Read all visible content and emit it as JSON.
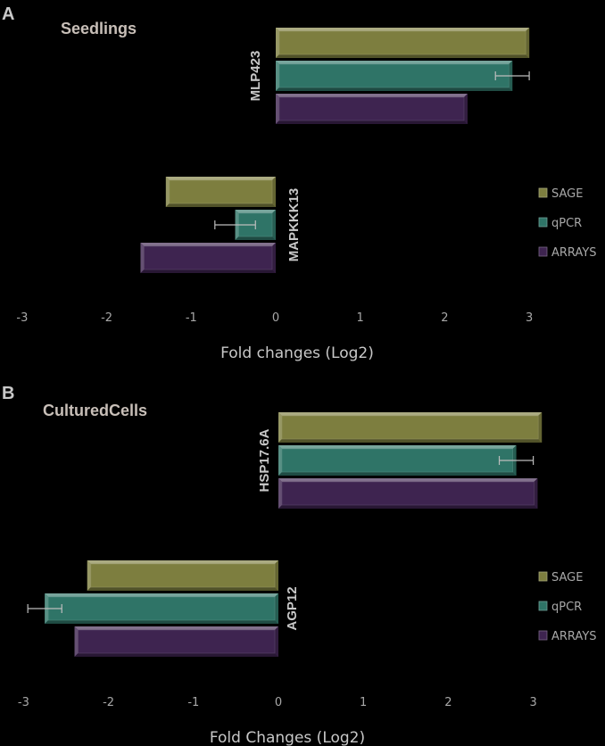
{
  "panels": [
    {
      "letter": "A",
      "title": "Seedlings",
      "xlabel": "Fold changes (Log2)"
    },
    {
      "letter": "B",
      "title": "CulturedCells",
      "xlabel": "Fold Changes (Log2)"
    }
  ],
  "legend": [
    "SAGE",
    "qPCR",
    "ARRAYS"
  ],
  "colors": {
    "SAGE": "#7d7e3f",
    "qPCR": "#2f7467",
    "ARRAYS": "#3e2450"
  },
  "chart_data": [
    {
      "type": "bar",
      "orientation": "horizontal",
      "title": "Seedlings",
      "xlabel": "Fold changes (Log2)",
      "xlim": [
        -3,
        3
      ],
      "xticks": [
        -3,
        -2,
        -1,
        0,
        1,
        2,
        3
      ],
      "categories": [
        "MLP423",
        "MAPKKK13"
      ],
      "series": [
        {
          "name": "SAGE",
          "values": [
            3.0,
            -1.3
          ]
        },
        {
          "name": "qPCR",
          "values": [
            2.8,
            -0.48
          ],
          "error": [
            0.2,
            0.24
          ]
        },
        {
          "name": "ARRAYS",
          "values": [
            2.27,
            -1.6
          ]
        }
      ],
      "legend_position": "right"
    },
    {
      "type": "bar",
      "orientation": "horizontal",
      "title": "CulturedCells",
      "xlabel": "Fold Changes (Log2)",
      "xlim": [
        -3,
        3
      ],
      "xticks": [
        -3,
        -2,
        -1,
        0,
        1,
        2,
        3
      ],
      "categories": [
        "HSP17.6A",
        "AGP12"
      ],
      "series": [
        {
          "name": "SAGE",
          "values": [
            3.1,
            -2.25
          ]
        },
        {
          "name": "qPCR",
          "values": [
            2.8,
            -2.75
          ],
          "error": [
            0.2,
            0.2
          ]
        },
        {
          "name": "ARRAYS",
          "values": [
            3.05,
            -2.4
          ]
        }
      ],
      "legend_position": "right"
    }
  ]
}
